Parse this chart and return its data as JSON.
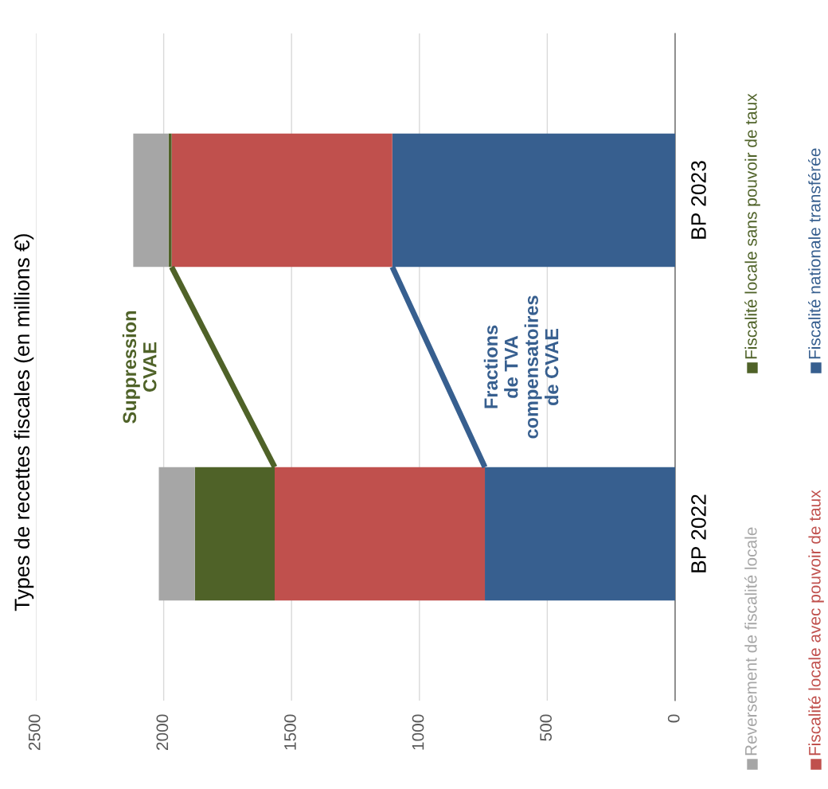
{
  "chart_data": {
    "type": "bar",
    "orientation": "horizontal",
    "stacked": true,
    "title": "Types de recettes fiscales (en millions €)",
    "categories": [
      "BP 2023",
      "BP 2022"
    ],
    "series": [
      {
        "name": "Fiscalité nationale transférée",
        "color": "#375f8f",
        "values": [
          1106,
          744
        ]
      },
      {
        "name": "Fiscalité locale avec pouvoir de taux",
        "color": "#c0504d",
        "values": [
          863,
          822
        ]
      },
      {
        "name": "Fiscalité locale sans pouvoir de taux",
        "color": "#4f6228",
        "values": [
          12,
          312
        ]
      },
      {
        "name": "Reversement de fiscalité locale",
        "color": "#a6a6a6",
        "values": [
          138,
          141
        ]
      }
    ],
    "xlim": [
      2500,
      0
    ],
    "xticks": [
      0,
      500,
      1000,
      1500,
      2000,
      2500
    ],
    "grid": "x",
    "legend": "right",
    "annotations": [
      "Suppression\nCVAE",
      "Fractions\nde TVA\ncompensatoires\nde CVAE"
    ]
  }
}
